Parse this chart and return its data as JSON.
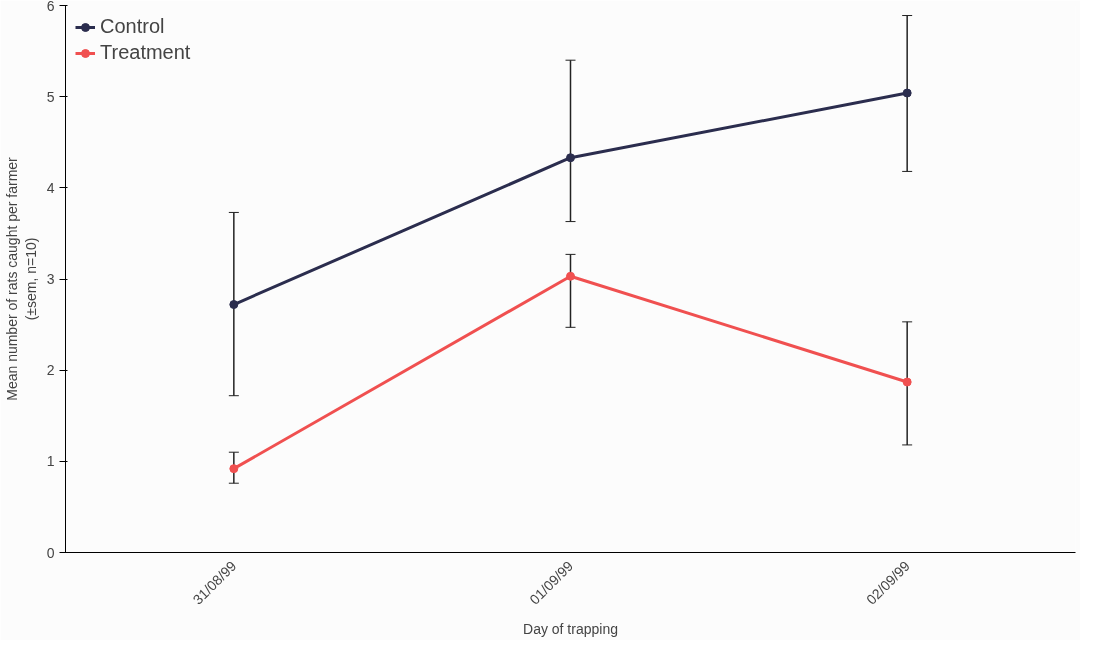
{
  "chart_data": {
    "type": "line",
    "xlabel": "Day of trapping",
    "ylabel": "Mean number of rats caught per farmer\n(±sem, n=10)",
    "categories": [
      "31/08/99",
      "01/09/99",
      "02/09/99"
    ],
    "series": [
      {
        "name": "Control",
        "color": "#2b2d4e",
        "values": [
          2.72,
          4.33,
          5.04
        ],
        "errors": [
          [
            1.72,
            3.73
          ],
          [
            3.63,
            5.4
          ],
          [
            4.18,
            5.89
          ]
        ]
      },
      {
        "name": "Treatment",
        "color": "#f05050",
        "values": [
          0.92,
          3.03,
          1.87
        ],
        "errors": [
          [
            0.76,
            1.1
          ],
          [
            2.47,
            3.27
          ],
          [
            1.18,
            2.53
          ]
        ]
      }
    ],
    "ylim": [
      0,
      6
    ],
    "yticks": [
      0,
      1,
      2,
      3,
      4,
      5,
      6
    ],
    "grid": false,
    "legend": "top left",
    "marker": "circle",
    "line_style": "solid"
  }
}
